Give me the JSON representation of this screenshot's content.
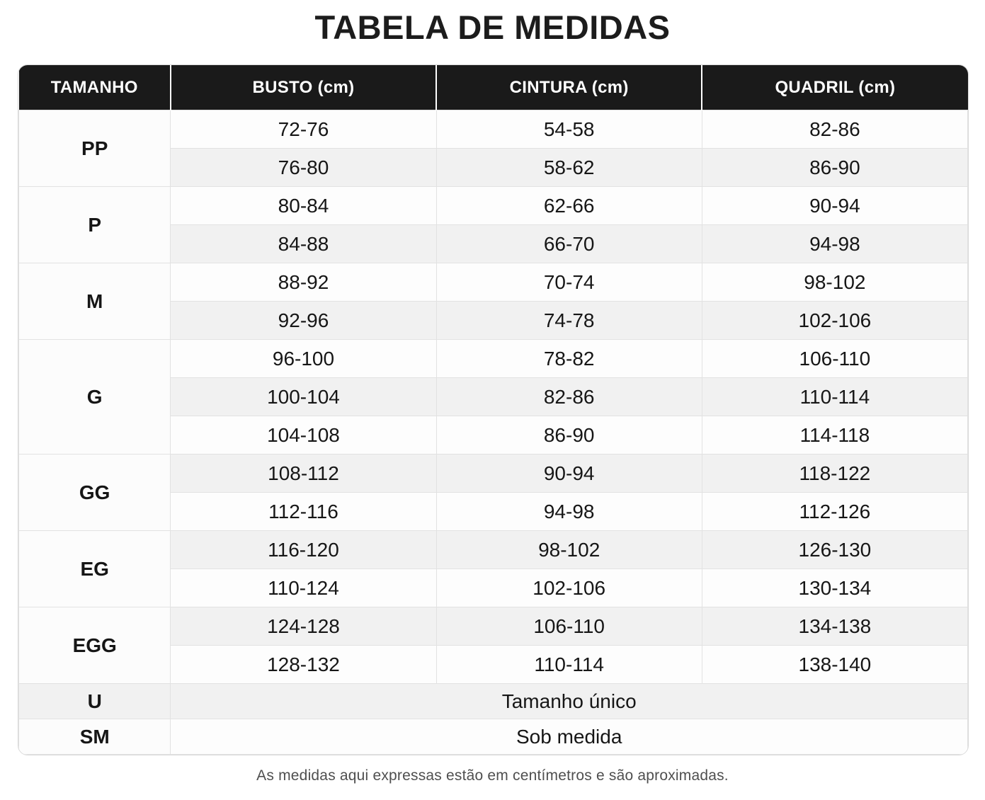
{
  "title": "TABELA DE MEDIDAS",
  "table": {
    "headers": [
      "TAMANHO",
      "BUSTO (cm)",
      "CINTURA (cm)",
      "QUADRIL (cm)"
    ],
    "sections": [
      {
        "size": "PP",
        "rows": [
          [
            "72-76",
            "54-58",
            "82-86"
          ],
          [
            "76-80",
            "58-62",
            "86-90"
          ]
        ]
      },
      {
        "size": "P",
        "rows": [
          [
            "80-84",
            "62-66",
            "90-94"
          ],
          [
            "84-88",
            "66-70",
            "94-98"
          ]
        ]
      },
      {
        "size": "M",
        "rows": [
          [
            "88-92",
            "70-74",
            "98-102"
          ],
          [
            "92-96",
            "74-78",
            "102-106"
          ]
        ]
      },
      {
        "size": "G",
        "rows": [
          [
            "96-100",
            "78-82",
            "106-110"
          ],
          [
            "100-104",
            "82-86",
            "110-114"
          ],
          [
            "104-108",
            "86-90",
            "114-118"
          ]
        ]
      },
      {
        "size": "GG",
        "rows": [
          [
            "108-112",
            "90-94",
            "118-122"
          ],
          [
            "112-116",
            "94-98",
            "112-126"
          ]
        ]
      },
      {
        "size": "EG",
        "rows": [
          [
            "116-120",
            "98-102",
            "126-130"
          ],
          [
            "110-124",
            "102-106",
            "130-134"
          ]
        ]
      },
      {
        "size": "EGG",
        "rows": [
          [
            "124-128",
            "106-110",
            "134-138"
          ],
          [
            "128-132",
            "110-114",
            "138-140"
          ]
        ]
      }
    ],
    "merged_rows": [
      {
        "size": "U",
        "label": "Tamanho único"
      },
      {
        "size": "SM",
        "label": "Sob medida"
      }
    ]
  },
  "footer": "As medidas aqui expressas estão em centímetros e são aproximadas.",
  "colors": {
    "header_bg": "#1a1a1a",
    "header_text": "#ffffff",
    "stripe": "#f1f1f1",
    "row_white": "#fdfdfd",
    "border": "#e2e2e2",
    "text": "#161616",
    "footer_text": "#4f4f4f"
  }
}
